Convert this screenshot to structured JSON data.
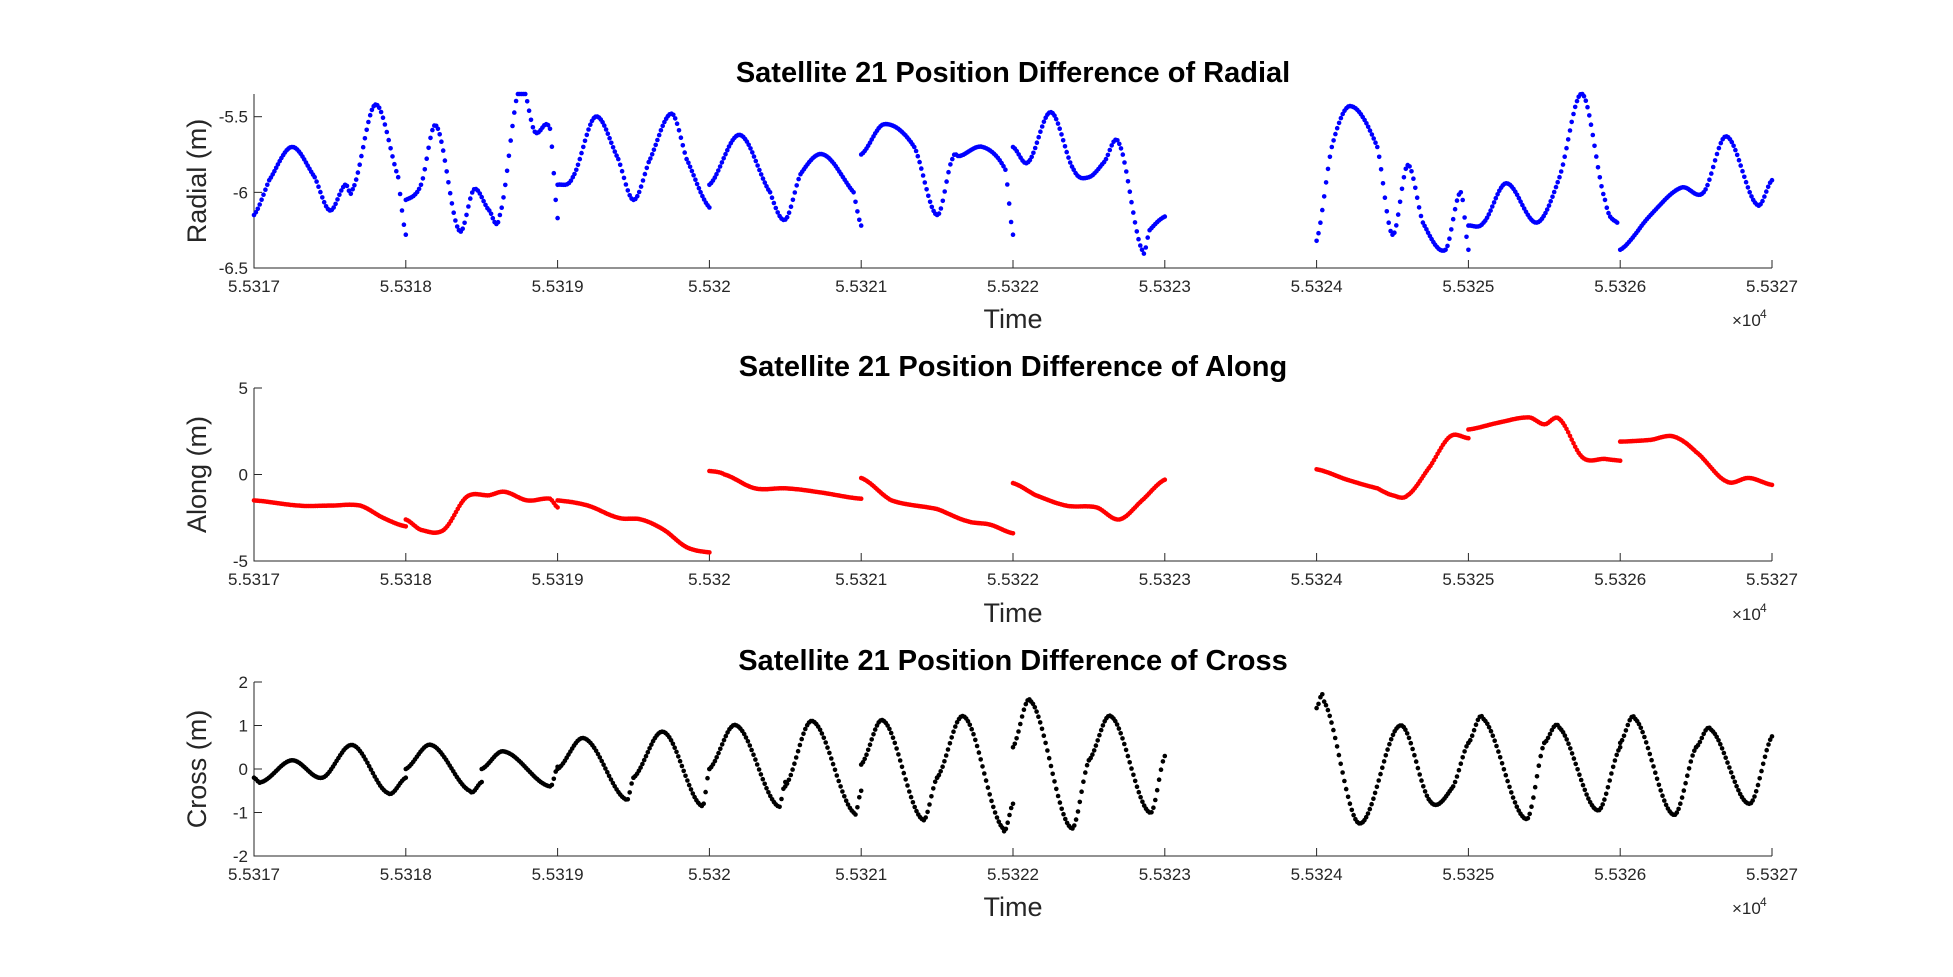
{
  "chart_data": [
    {
      "type": "scatter",
      "title": "Satellite 21 Position Difference of Radial",
      "xlabel": "Time",
      "ylabel": "Radial (m)",
      "x_exponent": "×10",
      "x_exponent_power": "4",
      "xlim": [
        55317,
        55327
      ],
      "ylim": [
        -6.5,
        -5.35
      ],
      "xticks": [
        55317,
        55318,
        55319,
        55320,
        55321,
        55322,
        55323,
        55324,
        55325,
        55326,
        55327
      ],
      "xtick_labels": [
        "5.5317",
        "5.5318",
        "5.5319",
        "5.532",
        "5.5321",
        "5.5322",
        "5.5323",
        "5.5324",
        "5.5325",
        "5.5326",
        "5.5327"
      ],
      "yticks": [
        -6.5,
        -6,
        -5.5
      ],
      "ytick_labels": [
        "-6.5",
        "-6",
        "-5.5"
      ],
      "color": "#0000ff",
      "segments": [
        {
          "x": [
            55317.0,
            55317.1,
            55317.25,
            55317.4,
            55317.5,
            55317.6,
            55317.65,
            55317.8,
            55317.95,
            55318.0
          ],
          "y": [
            -6.15,
            -5.92,
            -5.7,
            -5.9,
            -6.12,
            -5.95,
            -5.98,
            -5.42,
            -5.9,
            -6.28
          ]
        },
        {
          "x": [
            55318.0,
            55318.1,
            55318.2,
            55318.35,
            55318.45,
            55318.55,
            55318.62,
            55318.75,
            55318.85,
            55318.95,
            55319.0
          ],
          "y": [
            -6.05,
            -5.95,
            -5.56,
            -6.25,
            -5.98,
            -6.12,
            -6.15,
            -5.3,
            -5.6,
            -5.58,
            -6.17
          ]
        },
        {
          "x": [
            55319.0,
            55319.1,
            55319.25,
            55319.4,
            55319.5,
            55319.6,
            55319.75,
            55319.85,
            55320.0
          ],
          "y": [
            -5.95,
            -5.9,
            -5.5,
            -5.78,
            -6.05,
            -5.8,
            -5.48,
            -5.78,
            -6.1
          ]
        },
        {
          "x": [
            55320.0,
            55320.2,
            55320.4,
            55320.5,
            55320.6,
            55320.75,
            55320.95,
            55321.0
          ],
          "y": [
            -5.95,
            -5.62,
            -6.0,
            -6.18,
            -5.88,
            -5.75,
            -6.0,
            -6.22
          ]
        },
        {
          "x": [
            55321.0,
            55321.15,
            55321.35,
            55321.5,
            55321.6,
            55321.65,
            55321.8,
            55321.95,
            55322.0
          ],
          "y": [
            -5.75,
            -5.55,
            -5.7,
            -6.15,
            -5.78,
            -5.76,
            -5.7,
            -5.85,
            -6.28
          ]
        },
        {
          "x": [
            55322.0,
            55322.1,
            55322.25,
            55322.4,
            55322.5,
            55322.6,
            55322.7,
            55322.85,
            55322.9,
            55323.0
          ],
          "y": [
            -5.7,
            -5.8,
            -5.47,
            -5.85,
            -5.9,
            -5.8,
            -5.68,
            -6.38,
            -6.25,
            -6.16
          ]
        },
        {
          "x": [
            55324.0,
            55324.1,
            55324.22,
            55324.4,
            55324.5,
            55324.6,
            55324.7,
            55324.85,
            55324.95,
            55325.0
          ],
          "y": [
            -6.32,
            -5.7,
            -5.43,
            -5.7,
            -6.28,
            -5.82,
            -6.2,
            -6.38,
            -6.0,
            -6.38
          ]
        },
        {
          "x": [
            55325.0,
            55325.1,
            55325.25,
            55325.45,
            55325.6,
            55325.75,
            55325.9,
            55325.98
          ],
          "y": [
            -6.22,
            -6.2,
            -5.94,
            -6.2,
            -5.9,
            -5.35,
            -6.05,
            -6.2
          ]
        },
        {
          "x": [
            55326.0,
            55326.2,
            55326.4,
            55326.55,
            55326.7,
            55326.9,
            55327.0
          ],
          "y": [
            -6.38,
            -6.15,
            -5.97,
            -6.0,
            -5.63,
            -6.08,
            -5.92
          ]
        }
      ]
    },
    {
      "type": "scatter",
      "title": "Satellite 21 Position Difference of Along",
      "xlabel": "Time",
      "ylabel": "Along (m)",
      "x_exponent": "×10",
      "x_exponent_power": "4",
      "xlim": [
        55317,
        55327
      ],
      "ylim": [
        -5,
        5
      ],
      "xticks": [
        55317,
        55318,
        55319,
        55320,
        55321,
        55322,
        55323,
        55324,
        55325,
        55326,
        55327
      ],
      "xtick_labels": [
        "5.5317",
        "5.5318",
        "5.5319",
        "5.532",
        "5.5321",
        "5.5322",
        "5.5323",
        "5.5324",
        "5.5325",
        "5.5326",
        "5.5327"
      ],
      "yticks": [
        -5,
        0,
        5
      ],
      "ytick_labels": [
        "-5",
        "0",
        "5"
      ],
      "color": "#ff0000",
      "segments": [
        {
          "x": [
            55317.0,
            55317.3,
            55317.5,
            55317.7,
            55317.85,
            55318.0
          ],
          "y": [
            -1.5,
            -1.8,
            -1.8,
            -1.8,
            -2.5,
            -3.0
          ]
        },
        {
          "x": [
            55318.0,
            55318.1,
            55318.25,
            55318.4,
            55318.55,
            55318.65,
            55318.8,
            55318.95,
            55319.0
          ],
          "y": [
            -2.6,
            -3.2,
            -3.2,
            -1.3,
            -1.2,
            -1.0,
            -1.5,
            -1.4,
            -1.9
          ]
        },
        {
          "x": [
            55319.0,
            55319.2,
            55319.4,
            55319.55,
            55319.7,
            55319.85,
            55320.0
          ],
          "y": [
            -1.5,
            -1.8,
            -2.5,
            -2.6,
            -3.2,
            -4.2,
            -4.5
          ]
        },
        {
          "x": [
            55320.0,
            55320.1,
            55320.3,
            55320.5,
            55320.7,
            55321.0
          ],
          "y": [
            0.2,
            0.0,
            -0.8,
            -0.8,
            -1.0,
            -1.4
          ]
        },
        {
          "x": [
            55321.0,
            55321.2,
            55321.5,
            55321.7,
            55321.85,
            55322.0
          ],
          "y": [
            -0.2,
            -1.5,
            -2.0,
            -2.7,
            -2.9,
            -3.4
          ]
        },
        {
          "x": [
            55322.0,
            55322.15,
            55322.35,
            55322.55,
            55322.7,
            55322.85,
            55323.0
          ],
          "y": [
            -0.5,
            -1.2,
            -1.8,
            -1.9,
            -2.6,
            -1.5,
            -0.3
          ]
        },
        {
          "x": [
            55324.0,
            55324.2,
            55324.4,
            55324.5,
            55324.6,
            55324.75,
            55324.88,
            55325.0
          ],
          "y": [
            0.3,
            -0.3,
            -0.8,
            -1.2,
            -1.2,
            0.5,
            2.2,
            2.1
          ]
        },
        {
          "x": [
            55325.0,
            55325.2,
            55325.4,
            55325.5,
            55325.6,
            55325.75,
            55325.9,
            55326.0
          ],
          "y": [
            2.6,
            3.0,
            3.3,
            2.9,
            3.2,
            1.0,
            0.9,
            0.8
          ]
        },
        {
          "x": [
            55326.0,
            55326.2,
            55326.35,
            55326.5,
            55326.7,
            55326.85,
            55327.0
          ],
          "y": [
            1.9,
            2.0,
            2.2,
            1.3,
            -0.4,
            -0.2,
            -0.6
          ]
        }
      ]
    },
    {
      "type": "scatter",
      "title": "Satellite 21 Position Difference of Cross",
      "xlabel": "Time",
      "ylabel": "Cross (m)",
      "x_exponent": "×10",
      "x_exponent_power": "4",
      "xlim": [
        55317,
        55327
      ],
      "ylim": [
        -2,
        2
      ],
      "xticks": [
        55317,
        55318,
        55319,
        55320,
        55321,
        55322,
        55323,
        55324,
        55325,
        55326,
        55327
      ],
      "xtick_labels": [
        "5.5317",
        "5.5318",
        "5.5319",
        "5.532",
        "5.5321",
        "5.5322",
        "5.5323",
        "5.5324",
        "5.5325",
        "5.5326",
        "5.5327"
      ],
      "yticks": [
        -2,
        -1,
        0,
        1,
        2
      ],
      "ytick_labels": [
        "-2",
        "-1",
        "0",
        "1",
        "2"
      ],
      "color": "#000000",
      "segments": [
        {
          "x": [
            55317.0,
            55317.05,
            55317.25,
            55317.45,
            55317.65,
            55317.88,
            55318.0
          ],
          "y": [
            -0.2,
            -0.3,
            0.2,
            -0.2,
            0.55,
            -0.55,
            -0.2
          ]
        },
        {
          "x": [
            55318.0,
            55318.17,
            55318.42,
            55318.5
          ],
          "y": [
            0.0,
            0.55,
            -0.5,
            -0.3
          ]
        },
        {
          "x": [
            55318.5,
            55318.65,
            55318.95,
            55319.0
          ],
          "y": [
            0.0,
            0.4,
            -0.4,
            0.05
          ]
        },
        {
          "x": [
            55319.0,
            55319.18,
            55319.45,
            55319.5
          ],
          "y": [
            0.0,
            0.7,
            -0.7,
            -0.2
          ]
        },
        {
          "x": [
            55319.5,
            55319.7,
            55319.95,
            55320.0
          ],
          "y": [
            -0.2,
            0.85,
            -0.85,
            0.0
          ]
        },
        {
          "x": [
            55320.0,
            55320.18,
            55320.45,
            55320.5
          ],
          "y": [
            0.0,
            1.0,
            -0.85,
            -0.3
          ]
        },
        {
          "x": [
            55320.5,
            55320.68,
            55320.95,
            55321.0
          ],
          "y": [
            -0.4,
            1.1,
            -1.0,
            -0.5
          ]
        },
        {
          "x": [
            55321.0,
            55321.15,
            55321.4,
            55321.5
          ],
          "y": [
            0.1,
            1.1,
            -1.15,
            -0.2
          ]
        },
        {
          "x": [
            55321.5,
            55321.68,
            55321.93,
            55322.0
          ],
          "y": [
            -0.2,
            1.2,
            -1.35,
            -0.8
          ]
        },
        {
          "x": [
            55322.0,
            55322.12,
            55322.38,
            55322.5
          ],
          "y": [
            0.5,
            1.55,
            -1.35,
            0.2
          ]
        },
        {
          "x": [
            55322.5,
            55322.65,
            55322.9,
            55323.0
          ],
          "y": [
            0.2,
            1.2,
            -1.0,
            0.3
          ]
        },
        {
          "x": [
            55324.0,
            55324.05,
            55324.28,
            55324.55,
            55324.75,
            55324.9,
            55325.0
          ],
          "y": [
            1.4,
            1.55,
            -1.25,
            1.0,
            -0.75,
            -0.4,
            0.6
          ]
        },
        {
          "x": [
            55325.0,
            55325.1,
            55325.38,
            55325.5
          ],
          "y": [
            0.6,
            1.15,
            -1.15,
            0.6
          ]
        },
        {
          "x": [
            55325.5,
            55325.6,
            55325.85,
            55326.0
          ],
          "y": [
            0.6,
            0.95,
            -0.95,
            0.5
          ]
        },
        {
          "x": [
            55326.0,
            55326.1,
            55326.35,
            55326.5
          ],
          "y": [
            0.6,
            1.15,
            -1.05,
            0.5
          ]
        },
        {
          "x": [
            55326.5,
            55326.6,
            55326.85,
            55327.0
          ],
          "y": [
            0.5,
            0.9,
            -0.8,
            0.75
          ]
        }
      ]
    }
  ]
}
